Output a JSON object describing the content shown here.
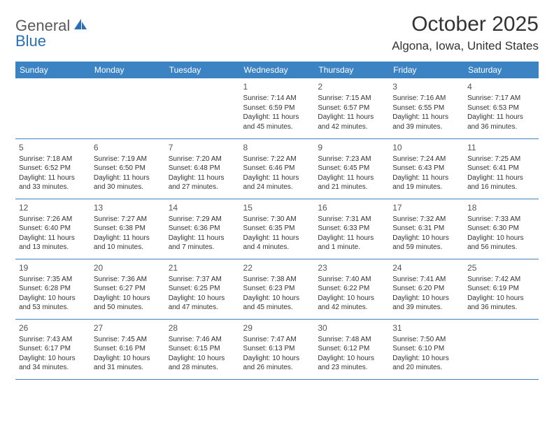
{
  "logo": {
    "text1": "General",
    "text2": "Blue"
  },
  "title": "October 2025",
  "location": "Algona, Iowa, United States",
  "colors": {
    "header_bg": "#3c83c4",
    "header_fg": "#ffffff",
    "rule": "#3c83c4",
    "text": "#333333"
  },
  "day_headers": [
    "Sunday",
    "Monday",
    "Tuesday",
    "Wednesday",
    "Thursday",
    "Friday",
    "Saturday"
  ],
  "weeks": [
    [
      null,
      null,
      null,
      {
        "n": "1",
        "sr": "7:14 AM",
        "ss": "6:59 PM",
        "dl": "11 hours and 45 minutes."
      },
      {
        "n": "2",
        "sr": "7:15 AM",
        "ss": "6:57 PM",
        "dl": "11 hours and 42 minutes."
      },
      {
        "n": "3",
        "sr": "7:16 AM",
        "ss": "6:55 PM",
        "dl": "11 hours and 39 minutes."
      },
      {
        "n": "4",
        "sr": "7:17 AM",
        "ss": "6:53 PM",
        "dl": "11 hours and 36 minutes."
      }
    ],
    [
      {
        "n": "5",
        "sr": "7:18 AM",
        "ss": "6:52 PM",
        "dl": "11 hours and 33 minutes."
      },
      {
        "n": "6",
        "sr": "7:19 AM",
        "ss": "6:50 PM",
        "dl": "11 hours and 30 minutes."
      },
      {
        "n": "7",
        "sr": "7:20 AM",
        "ss": "6:48 PM",
        "dl": "11 hours and 27 minutes."
      },
      {
        "n": "8",
        "sr": "7:22 AM",
        "ss": "6:46 PM",
        "dl": "11 hours and 24 minutes."
      },
      {
        "n": "9",
        "sr": "7:23 AM",
        "ss": "6:45 PM",
        "dl": "11 hours and 21 minutes."
      },
      {
        "n": "10",
        "sr": "7:24 AM",
        "ss": "6:43 PM",
        "dl": "11 hours and 19 minutes."
      },
      {
        "n": "11",
        "sr": "7:25 AM",
        "ss": "6:41 PM",
        "dl": "11 hours and 16 minutes."
      }
    ],
    [
      {
        "n": "12",
        "sr": "7:26 AM",
        "ss": "6:40 PM",
        "dl": "11 hours and 13 minutes."
      },
      {
        "n": "13",
        "sr": "7:27 AM",
        "ss": "6:38 PM",
        "dl": "11 hours and 10 minutes."
      },
      {
        "n": "14",
        "sr": "7:29 AM",
        "ss": "6:36 PM",
        "dl": "11 hours and 7 minutes."
      },
      {
        "n": "15",
        "sr": "7:30 AM",
        "ss": "6:35 PM",
        "dl": "11 hours and 4 minutes."
      },
      {
        "n": "16",
        "sr": "7:31 AM",
        "ss": "6:33 PM",
        "dl": "11 hours and 1 minute."
      },
      {
        "n": "17",
        "sr": "7:32 AM",
        "ss": "6:31 PM",
        "dl": "10 hours and 59 minutes."
      },
      {
        "n": "18",
        "sr": "7:33 AM",
        "ss": "6:30 PM",
        "dl": "10 hours and 56 minutes."
      }
    ],
    [
      {
        "n": "19",
        "sr": "7:35 AM",
        "ss": "6:28 PM",
        "dl": "10 hours and 53 minutes."
      },
      {
        "n": "20",
        "sr": "7:36 AM",
        "ss": "6:27 PM",
        "dl": "10 hours and 50 minutes."
      },
      {
        "n": "21",
        "sr": "7:37 AM",
        "ss": "6:25 PM",
        "dl": "10 hours and 47 minutes."
      },
      {
        "n": "22",
        "sr": "7:38 AM",
        "ss": "6:23 PM",
        "dl": "10 hours and 45 minutes."
      },
      {
        "n": "23",
        "sr": "7:40 AM",
        "ss": "6:22 PM",
        "dl": "10 hours and 42 minutes."
      },
      {
        "n": "24",
        "sr": "7:41 AM",
        "ss": "6:20 PM",
        "dl": "10 hours and 39 minutes."
      },
      {
        "n": "25",
        "sr": "7:42 AM",
        "ss": "6:19 PM",
        "dl": "10 hours and 36 minutes."
      }
    ],
    [
      {
        "n": "26",
        "sr": "7:43 AM",
        "ss": "6:17 PM",
        "dl": "10 hours and 34 minutes."
      },
      {
        "n": "27",
        "sr": "7:45 AM",
        "ss": "6:16 PM",
        "dl": "10 hours and 31 minutes."
      },
      {
        "n": "28",
        "sr": "7:46 AM",
        "ss": "6:15 PM",
        "dl": "10 hours and 28 minutes."
      },
      {
        "n": "29",
        "sr": "7:47 AM",
        "ss": "6:13 PM",
        "dl": "10 hours and 26 minutes."
      },
      {
        "n": "30",
        "sr": "7:48 AM",
        "ss": "6:12 PM",
        "dl": "10 hours and 23 minutes."
      },
      {
        "n": "31",
        "sr": "7:50 AM",
        "ss": "6:10 PM",
        "dl": "10 hours and 20 minutes."
      },
      null
    ]
  ],
  "labels": {
    "sunrise": "Sunrise: ",
    "sunset": "Sunset: ",
    "daylight": "Daylight: "
  }
}
